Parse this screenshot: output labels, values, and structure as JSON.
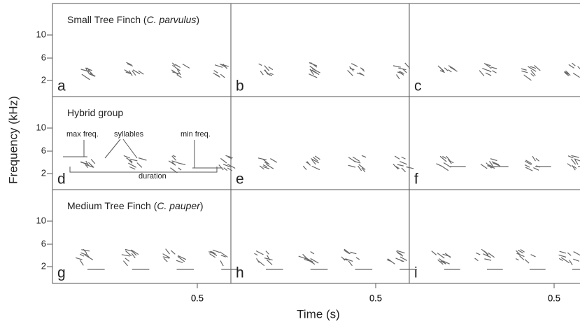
{
  "figure": {
    "y_axis_label": "Frequency (kHz)",
    "x_axis_label": "Time (s)",
    "y_ticks": [
      "10",
      "6",
      "2"
    ],
    "x_tick": "0.5",
    "rows": [
      {
        "title_prefix": "Small Tree Finch (",
        "title_species": "C. parvulus",
        "title_suffix": ")",
        "panels": [
          "a",
          "b",
          "c"
        ]
      },
      {
        "title_prefix": "Hybrid group",
        "panels": [
          "d",
          "e",
          "f"
        ]
      },
      {
        "title_prefix": "Medium Tree Finch (",
        "title_species": "C. pauper",
        "title_suffix": ")",
        "panels": [
          "g",
          "h",
          "i"
        ]
      }
    ],
    "annotations": {
      "max_freq": "max freq.",
      "syllables": "syllables",
      "min_freq": "min freq.",
      "duration": "duration"
    }
  }
}
